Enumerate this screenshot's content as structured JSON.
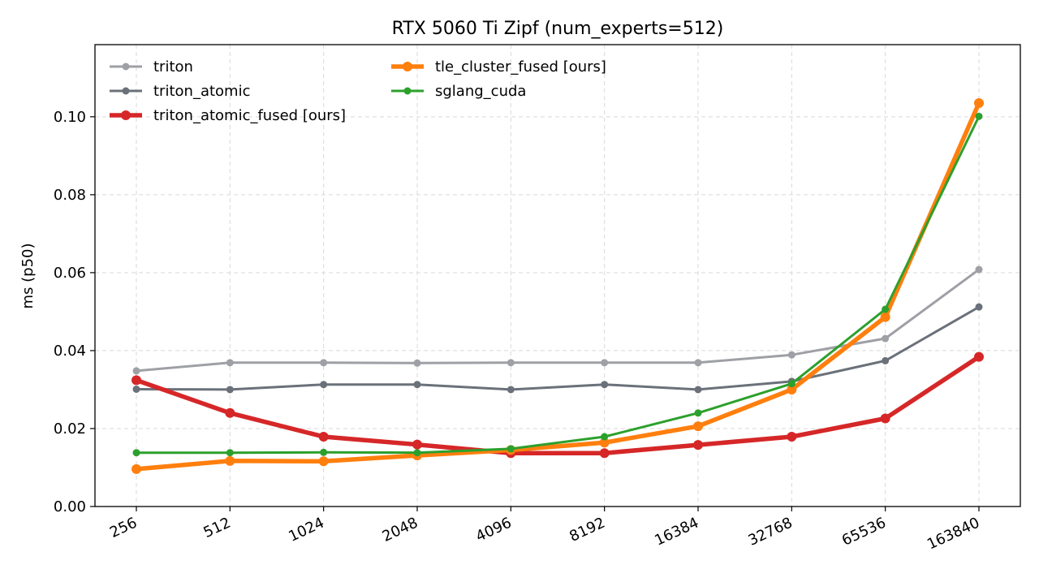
{
  "chart_data": {
    "type": "line",
    "title": "RTX 5060 Ti Zipf (num_experts=512)",
    "xlabel": "",
    "ylabel": "ms (p50)",
    "categories": [
      "256",
      "512",
      "1024",
      "2048",
      "4096",
      "8192",
      "16384",
      "32768",
      "65536",
      "163840"
    ],
    "ylim": [
      0,
      0.1185
    ],
    "yticks": [
      "0.00",
      "0.02",
      "0.04",
      "0.06",
      "0.08",
      "0.10"
    ],
    "grid": true,
    "legend_position": "top-left",
    "series": [
      {
        "name": "triton",
        "color": "#9ea0a5",
        "emphasis": false,
        "values": [
          0.0348,
          0.0369,
          0.0369,
          0.0368,
          0.0369,
          0.0369,
          0.0369,
          0.0389,
          0.0431,
          0.0608
        ]
      },
      {
        "name": "triton_atomic",
        "color": "#6b717a",
        "emphasis": false,
        "values": [
          0.0301,
          0.03,
          0.0313,
          0.0313,
          0.03,
          0.0313,
          0.03,
          0.0321,
          0.0374,
          0.0512
        ]
      },
      {
        "name": "triton_atomic_fused [ours]",
        "color": "#d62728",
        "emphasis": true,
        "values": [
          0.0324,
          0.024,
          0.0179,
          0.0159,
          0.0137,
          0.0137,
          0.0158,
          0.0179,
          0.0226,
          0.0384
        ]
      },
      {
        "name": "tle_cluster_fused [ours]",
        "color": "#ff7f0e",
        "emphasis": true,
        "values": [
          0.0096,
          0.0117,
          0.0116,
          0.0131,
          0.0145,
          0.0164,
          0.0206,
          0.03,
          0.0486,
          0.1035
        ]
      },
      {
        "name": "sglang_cuda",
        "color": "#2ca02c",
        "emphasis": false,
        "values": [
          0.0138,
          0.0138,
          0.0139,
          0.0138,
          0.0148,
          0.0179,
          0.024,
          0.0315,
          0.0506,
          0.1001
        ]
      }
    ]
  }
}
